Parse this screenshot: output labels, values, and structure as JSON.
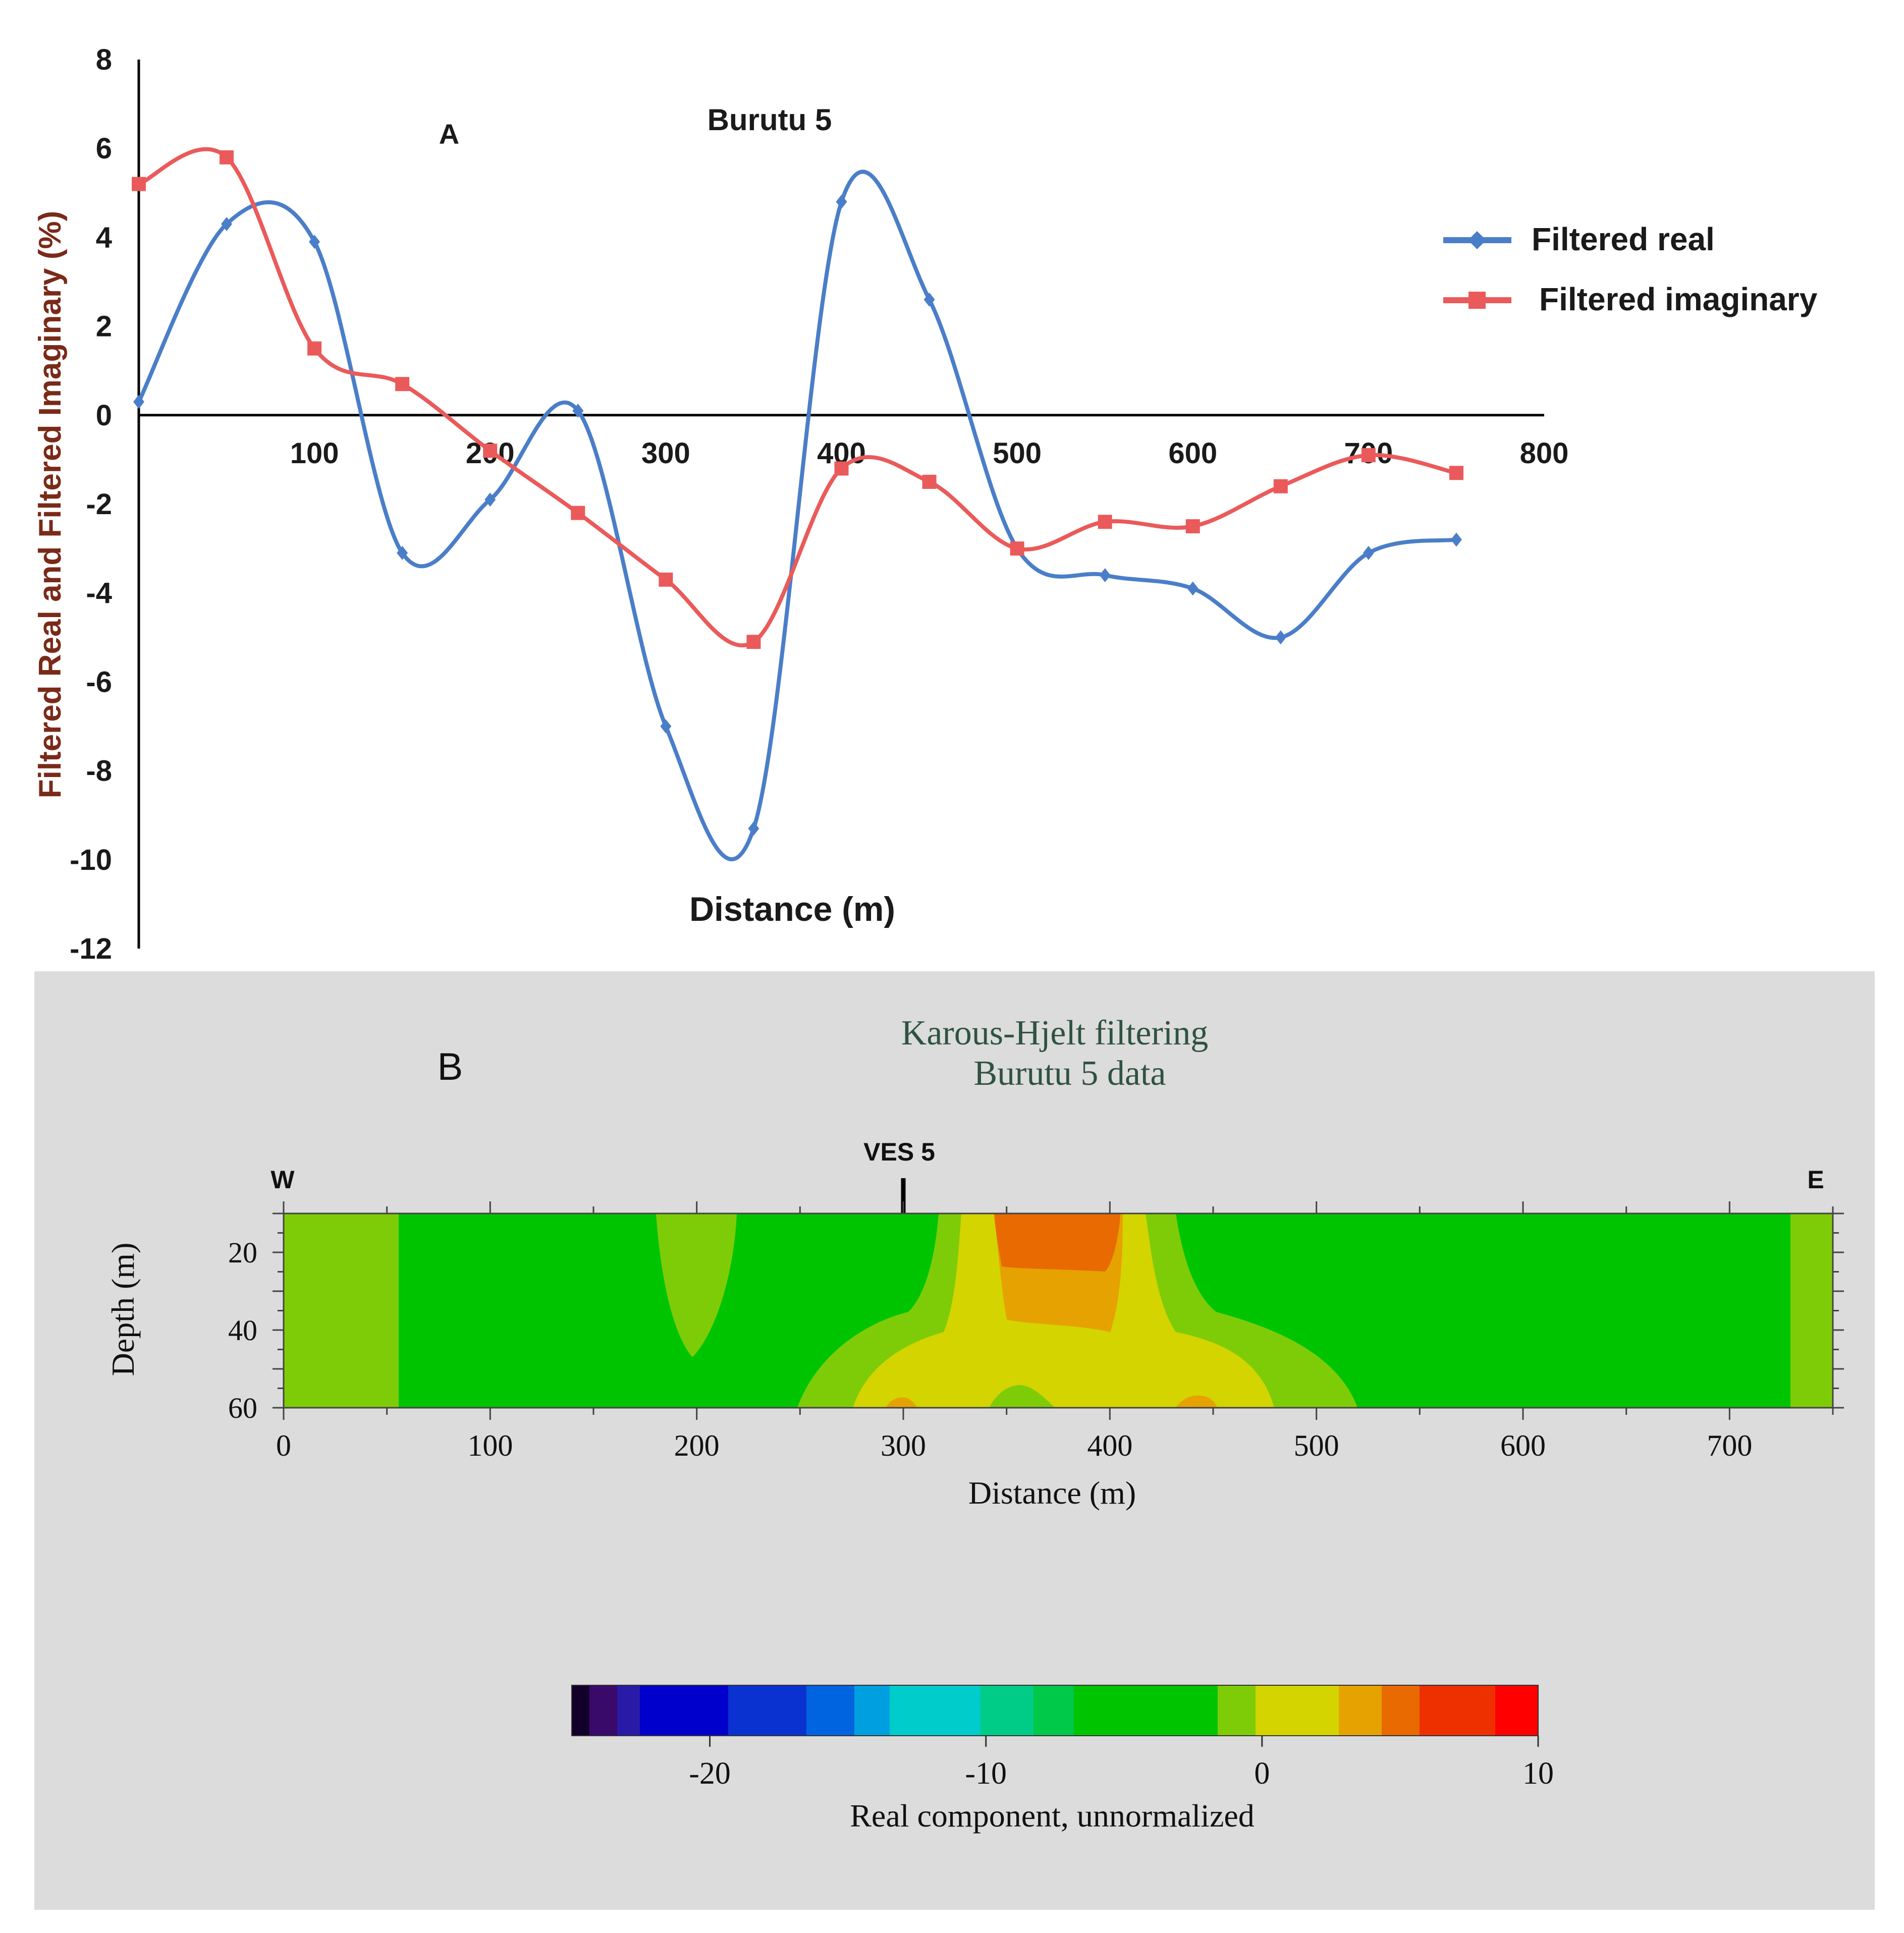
{
  "panel_a": {
    "panel_label": "A",
    "title": "Burutu 5",
    "chart_data": {
      "type": "line",
      "title": "Burutu 5",
      "xlabel": "Distance (m)",
      "ylabel": "Filtered Real and Filtered Imaginary (%)",
      "xlim": [
        0,
        800
      ],
      "ylim": [
        -12,
        8
      ],
      "x_ticks": [
        "100",
        "200",
        "300",
        "400",
        "500",
        "600",
        "700",
        "800"
      ],
      "y_ticks": [
        "8",
        "6",
        "4",
        "2",
        "0",
        "-2",
        "-4",
        "-6",
        "-8",
        "-10",
        "-12"
      ],
      "series": [
        {
          "name": "Filtered real",
          "color": "#4a7ec8",
          "x": [
            0,
            50,
            100,
            150,
            200,
            250,
            300,
            350,
            400,
            450,
            500,
            550,
            600,
            650,
            700,
            750
          ],
          "values": [
            0.3,
            4.3,
            3.9,
            -3.1,
            -1.9,
            0.1,
            -7.0,
            -9.3,
            4.8,
            2.6,
            -3.0,
            -3.6,
            -3.9,
            -5.0,
            -3.1,
            -2.8
          ]
        },
        {
          "name": "Filtered imaginary",
          "color": "#ea5a5a",
          "x": [
            0,
            50,
            100,
            150,
            200,
            250,
            300,
            350,
            400,
            450,
            500,
            550,
            600,
            650,
            700,
            750
          ],
          "values": [
            5.2,
            5.8,
            1.5,
            0.7,
            -0.8,
            -2.2,
            -3.7,
            -5.1,
            -1.2,
            -1.5,
            -3.0,
            -2.4,
            -2.5,
            -1.6,
            -0.9,
            -1.3
          ]
        }
      ],
      "legend_position": "right"
    }
  },
  "panel_b": {
    "panel_label": "B",
    "title_line1": "Karous-Hjelt filtering",
    "title_line2": "Burutu 5 data",
    "west_label": "W",
    "east_label": "E",
    "marker_label": "VES 5",
    "marker_distance": 300,
    "chart_data": {
      "type": "heatmap",
      "title": "Karous-Hjelt filtering Burutu 5 data",
      "xlabel": "Distance (m)",
      "ylabel": "Depth (m)",
      "xlim": [
        0,
        750
      ],
      "ylim": [
        10,
        60
      ],
      "x_ticks": [
        "0",
        "100",
        "200",
        "300",
        "400",
        "500",
        "600",
        "700"
      ],
      "y_ticks": [
        "20",
        "40",
        "60"
      ],
      "colorbar": {
        "label": "Real component, unnormalized",
        "range": [
          -25,
          10
        ],
        "ticks": [
          "-20",
          "-10",
          "0",
          "10"
        ]
      }
    }
  },
  "colors": {
    "real": "#4a7ec8",
    "imaginary": "#ea5a5a",
    "axis": "#000000",
    "title_a": "#1a1a1a",
    "ylabel_a": "#7a2a18",
    "panel_b_bg": "#dcdcdc",
    "title_b": "#2f5340"
  }
}
